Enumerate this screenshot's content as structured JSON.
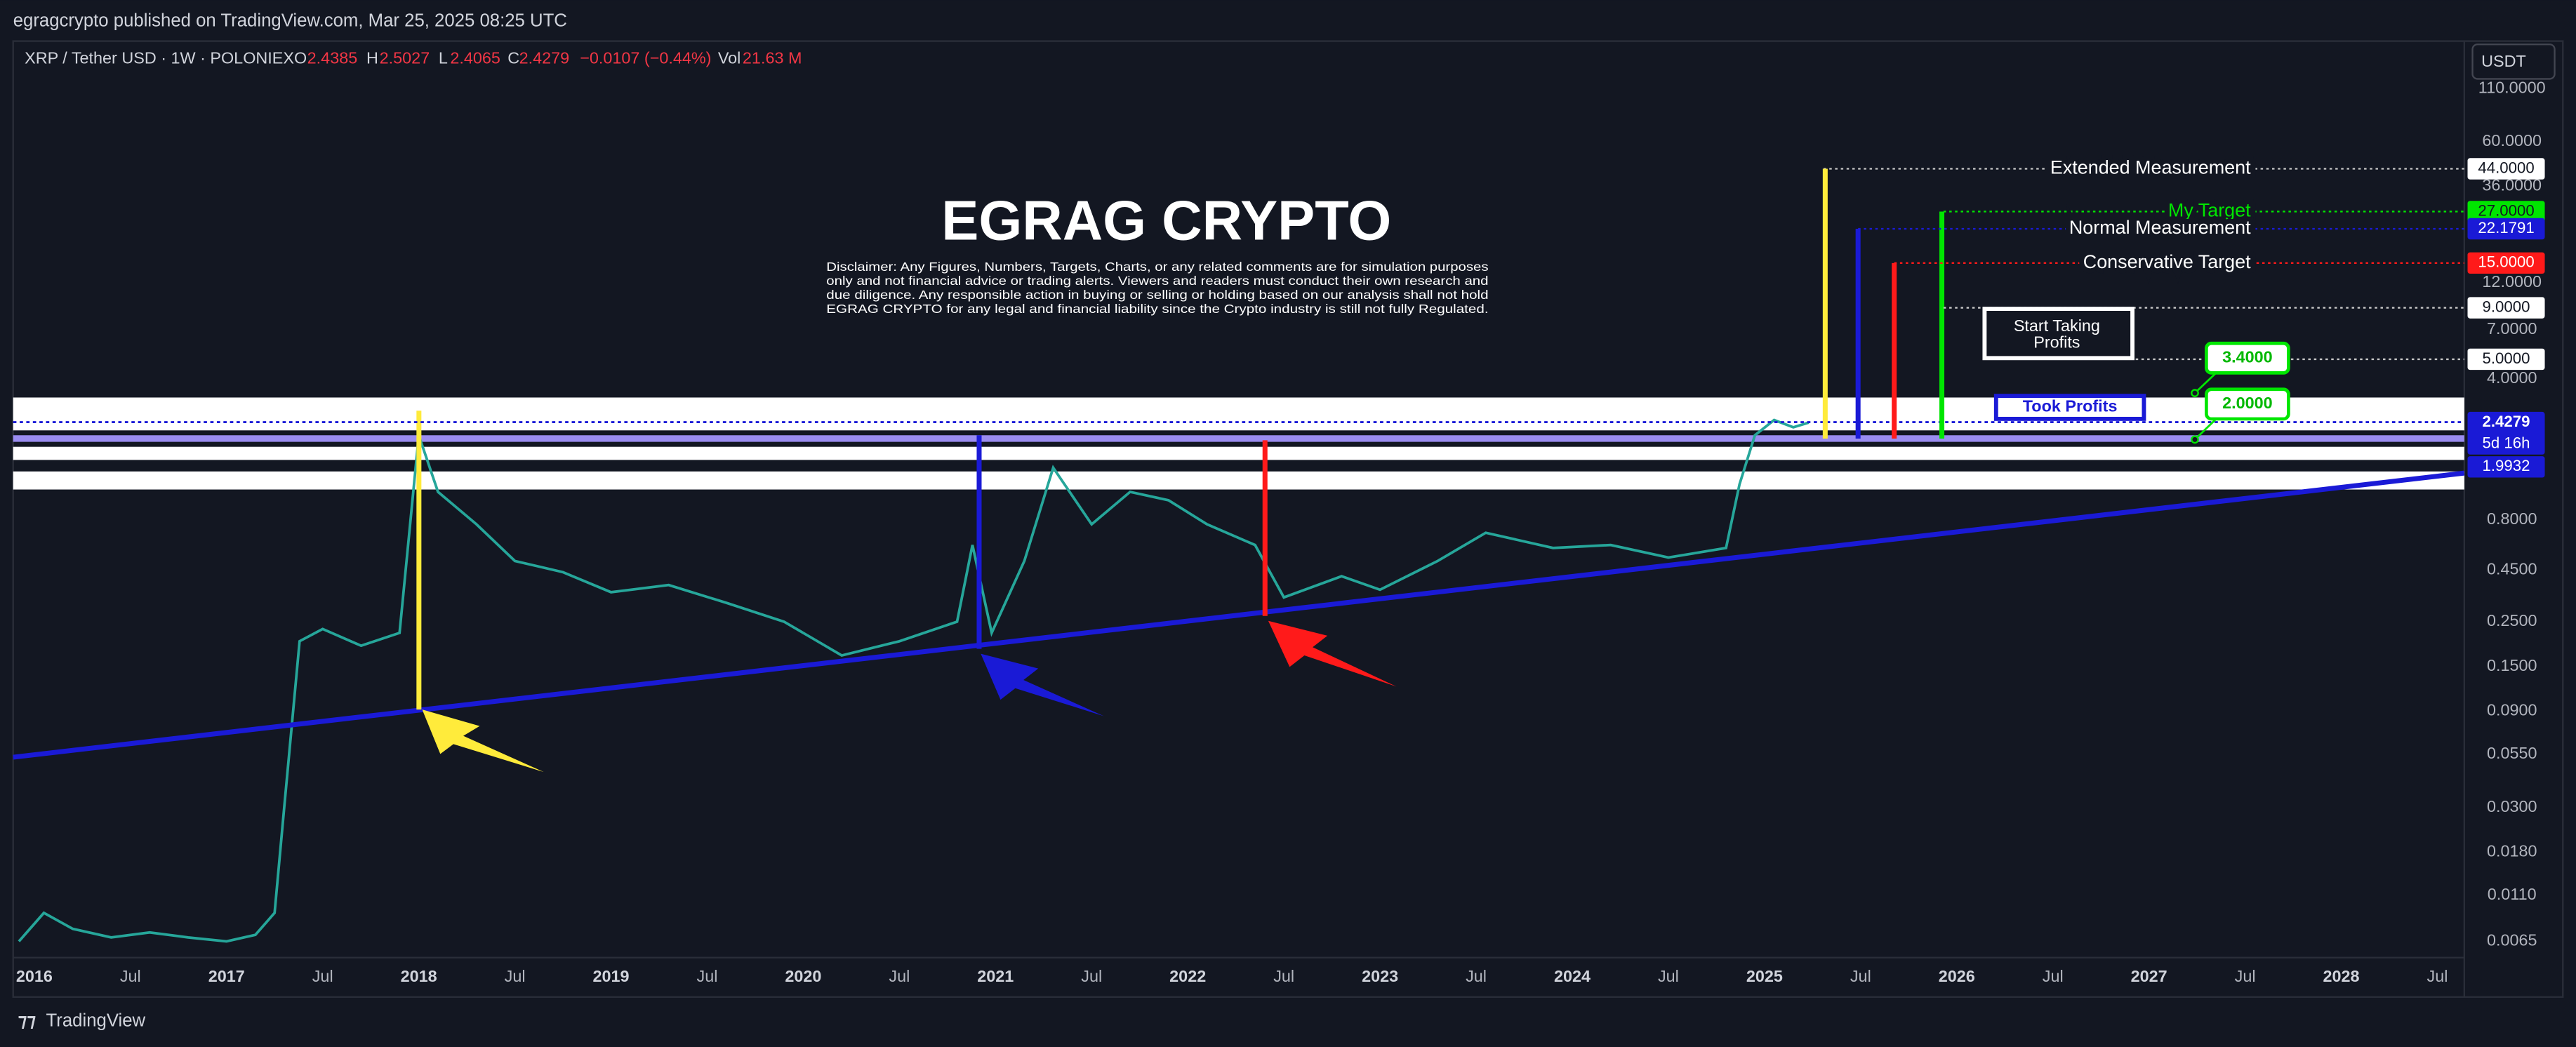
{
  "header": {
    "publisher": "egragcrypto published on TradingView.com, Mar 25, 2025 08:25 UTC"
  },
  "symbol_bar": {
    "symbol": "XRP / Tether USD · 1W · POLONIEX",
    "o_label": "O",
    "o": "2.4385",
    "h_label": "H",
    "h": "2.5027",
    "l_label": "L",
    "l": "2.4065",
    "c_label": "C",
    "c": "2.4279",
    "change": "−0.0107 (−0.44%)",
    "vol_label": "Vol",
    "vol": "21.63 M"
  },
  "currency_button": "USDT",
  "footer": "TradingView",
  "chart_data": {
    "type": "line",
    "title": "EGRAG CRYPTO",
    "disclaimer": [
      "Disclaimer: Any Figures, Numbers, Targets, Charts, or any related comments are for simulation purposes",
      "only and not financial advice or trading alerts. Viewers and readers must conduct their own research and",
      "due diligence. Any responsible action in buying or selling or holding based on our analysis shall not hold",
      "EGRAG CRYPTO for any legal and financial liability since the Crypto industry is still not fully Regulated."
    ],
    "x": [
      2015.92,
      2016.05,
      2016.2,
      2016.4,
      2016.6,
      2016.8,
      2017.0,
      2017.15,
      2017.25,
      2017.3,
      2017.38,
      2017.5,
      2017.7,
      2017.9,
      2018.0,
      2018.1,
      2018.3,
      2018.5,
      2018.75,
      2019.0,
      2019.3,
      2019.6,
      2019.9,
      2020.2,
      2020.5,
      2020.8,
      2020.88,
      2020.98,
      2021.15,
      2021.3,
      2021.5,
      2021.7,
      2021.9,
      2022.1,
      2022.35,
      2022.5,
      2022.8,
      2023.0,
      2023.3,
      2023.55,
      2023.9,
      2024.2,
      2024.5,
      2024.8,
      2024.87,
      2024.95,
      2025.05,
      2025.15,
      2025.23
    ],
    "values": [
      0.0065,
      0.009,
      0.0075,
      0.0068,
      0.0072,
      0.0068,
      0.0065,
      0.007,
      0.009,
      0.03,
      0.2,
      0.23,
      0.19,
      0.22,
      2.1,
      1.1,
      0.76,
      0.5,
      0.44,
      0.35,
      0.38,
      0.31,
      0.25,
      0.17,
      0.2,
      0.25,
      0.6,
      0.22,
      0.5,
      1.45,
      0.76,
      1.1,
      1.0,
      0.76,
      0.6,
      0.33,
      0.42,
      0.36,
      0.5,
      0.69,
      0.58,
      0.6,
      0.52,
      0.58,
      1.2,
      2.1,
      2.5,
      2.3,
      2.4279
    ],
    "color": "#26a69a",
    "log_scale": true,
    "grid": false,
    "xlim": [
      2015.89,
      2028.64
    ],
    "xticks": [
      2016,
      {
        "value": 2016.5,
        "label": "Jul"
      },
      2017,
      {
        "value": 2017.5,
        "label": "Jul"
      },
      2018,
      {
        "value": 2018.5,
        "label": "Jul"
      },
      2019,
      {
        "value": 2019.5,
        "label": "Jul"
      },
      2020,
      {
        "value": 2020.5,
        "label": "Jul"
      },
      2021,
      {
        "value": 2021.5,
        "label": "Jul"
      },
      2022,
      {
        "value": 2022.5,
        "label": "Jul"
      },
      2023,
      {
        "value": 2023.5,
        "label": "Jul"
      },
      2024,
      {
        "value": 2024.5,
        "label": "Jul"
      },
      2025,
      {
        "value": 2025.5,
        "label": "Jul"
      },
      2026,
      {
        "value": 2026.5,
        "label": "Jul"
      },
      2027,
      {
        "value": 2027.5,
        "label": "Jul"
      },
      2028,
      {
        "value": 2028.5,
        "label": "Jul"
      }
    ],
    "ylim": [
      0.0054,
      189
    ],
    "yticks": [
      {
        "value": 110,
        "label": "110.0000"
      },
      {
        "value": 60,
        "label": "60.0000"
      },
      {
        "value": 36,
        "label": "36.0000"
      },
      {
        "value": 12,
        "label": "12.0000"
      },
      {
        "value": 7,
        "label": "7.0000"
      },
      {
        "value": 4,
        "label": "4.0000"
      },
      {
        "value": 0.8,
        "label": "0.8000"
      },
      {
        "value": 0.45,
        "label": "0.4500"
      },
      {
        "value": 0.25,
        "label": "0.2500"
      },
      {
        "value": 0.15,
        "label": "0.1500"
      },
      {
        "value": 0.09,
        "label": "0.0900"
      },
      {
        "value": 0.055,
        "label": "0.0550"
      },
      {
        "value": 0.03,
        "label": "0.0300"
      },
      {
        "value": 0.018,
        "label": "0.0180"
      },
      {
        "value": 0.011,
        "label": "0.0110"
      },
      {
        "value": 0.0065,
        "label": "0.0065"
      }
    ],
    "last_price": {
      "value": 2.4279,
      "label": "2.4279",
      "countdown": "5d 16h",
      "color": "#1a1ad6"
    },
    "levels": [
      {
        "value": 44,
        "label": "44.0000",
        "text": "Extended  Measurement",
        "color": "#ffffff"
      },
      {
        "value": 27,
        "label": "27.0000",
        "text": "My Target",
        "color": "#00e600"
      },
      {
        "value": 22.1791,
        "label": "22.1791",
        "text": "Normal Measurement",
        "color": "#1a1ad6"
      },
      {
        "value": 15,
        "label": "15.0000",
        "text": "Conservative Target",
        "color": "#ff1a1a"
      },
      {
        "value": 9,
        "label": "9.0000",
        "color": "#ffffff"
      },
      {
        "value": 5,
        "label": "5.0000",
        "color": "#ffffff"
      },
      {
        "value": 1.9932,
        "label": "1.9932",
        "color": "#1a1ad6"
      }
    ],
    "notes": {
      "start_taking_profits": [
        "Start Taking",
        "Profits"
      ],
      "took_profits": "Took Profits"
    },
    "callouts": [
      {
        "value": 3.4,
        "label": "3.4000"
      },
      {
        "value": 2,
        "label": "2.0000"
      }
    ]
  }
}
